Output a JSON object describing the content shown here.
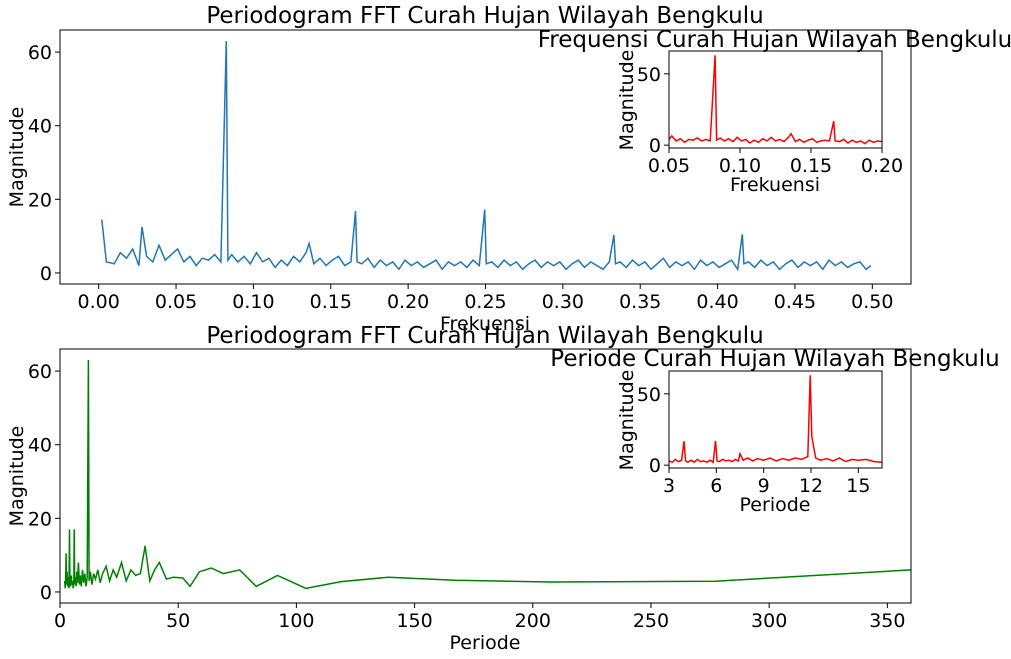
{
  "chart_data": [
    {
      "id": "top-main",
      "type": "line",
      "title": "Periodogram FFT Curah Hujan Wilayah Bengkulu",
      "xlabel": "Frekuensi",
      "ylabel": "Magnitude",
      "color": "#1f77b4",
      "xlim": [
        -0.025,
        0.525
      ],
      "ylim": [
        -3,
        66
      ],
      "xticks": [
        0.0,
        0.05,
        0.1,
        0.15,
        0.2,
        0.25,
        0.3,
        0.35,
        0.4,
        0.45,
        0.5
      ],
      "xtick_labels": [
        "0.00",
        "0.05",
        "0.10",
        "0.15",
        "0.20",
        "0.25",
        "0.30",
        "0.35",
        "0.40",
        "0.45",
        "0.50"
      ],
      "yticks": [
        0,
        20,
        40,
        60
      ],
      "ytick_labels": [
        "0",
        "20",
        "40",
        "60"
      ],
      "grid": false,
      "x": [
        0.002,
        0.005,
        0.01,
        0.014,
        0.018,
        0.022,
        0.026,
        0.028,
        0.031,
        0.035,
        0.039,
        0.043,
        0.047,
        0.051,
        0.055,
        0.059,
        0.063,
        0.067,
        0.071,
        0.075,
        0.079,
        0.0825,
        0.0835,
        0.086,
        0.09,
        0.094,
        0.098,
        0.102,
        0.106,
        0.11,
        0.114,
        0.118,
        0.122,
        0.126,
        0.13,
        0.134,
        0.136,
        0.139,
        0.143,
        0.147,
        0.151,
        0.155,
        0.159,
        0.163,
        0.166,
        0.167,
        0.17,
        0.174,
        0.178,
        0.182,
        0.186,
        0.19,
        0.194,
        0.198,
        0.202,
        0.206,
        0.21,
        0.214,
        0.218,
        0.222,
        0.226,
        0.23,
        0.234,
        0.238,
        0.242,
        0.246,
        0.2495,
        0.2505,
        0.254,
        0.258,
        0.262,
        0.266,
        0.27,
        0.274,
        0.278,
        0.282,
        0.286,
        0.29,
        0.294,
        0.298,
        0.302,
        0.306,
        0.31,
        0.314,
        0.318,
        0.322,
        0.326,
        0.33,
        0.333,
        0.334,
        0.337,
        0.341,
        0.345,
        0.349,
        0.353,
        0.357,
        0.361,
        0.365,
        0.369,
        0.373,
        0.377,
        0.381,
        0.385,
        0.389,
        0.393,
        0.397,
        0.401,
        0.405,
        0.409,
        0.413,
        0.416,
        0.417,
        0.42,
        0.424,
        0.428,
        0.432,
        0.436,
        0.44,
        0.444,
        0.448,
        0.452,
        0.456,
        0.46,
        0.464,
        0.468,
        0.472,
        0.476,
        0.48,
        0.484,
        0.488,
        0.492,
        0.496,
        0.499
      ],
      "y": [
        14.5,
        3.0,
        2.5,
        5.5,
        4.0,
        6.5,
        2.0,
        12.5,
        4.5,
        3.0,
        7.5,
        3.5,
        5.0,
        6.5,
        3.0,
        4.5,
        2.0,
        4.0,
        3.5,
        5.0,
        3.0,
        63.0,
        3.5,
        5.0,
        3.0,
        4.5,
        2.5,
        5.5,
        3.0,
        4.0,
        1.5,
        3.5,
        2.0,
        4.5,
        3.0,
        5.5,
        8.0,
        2.5,
        4.0,
        2.0,
        3.5,
        4.5,
        2.0,
        3.0,
        16.8,
        3.0,
        2.5,
        4.0,
        1.5,
        3.5,
        2.0,
        3.0,
        1.0,
        3.5,
        2.0,
        3.0,
        1.5,
        2.5,
        3.5,
        1.0,
        3.0,
        2.0,
        3.0,
        1.5,
        3.5,
        2.0,
        17.2,
        2.5,
        3.0,
        1.5,
        3.5,
        2.0,
        3.0,
        1.0,
        2.5,
        3.5,
        1.5,
        3.0,
        2.0,
        3.0,
        1.0,
        2.5,
        3.5,
        1.5,
        3.0,
        2.0,
        1.0,
        3.0,
        10.3,
        2.5,
        3.0,
        1.5,
        3.5,
        2.0,
        3.0,
        1.0,
        2.5,
        4.0,
        1.5,
        3.0,
        2.0,
        3.0,
        1.0,
        3.5,
        2.0,
        3.0,
        1.5,
        2.5,
        3.5,
        1.0,
        10.5,
        2.5,
        3.0,
        1.5,
        3.5,
        2.0,
        3.0,
        1.0,
        2.5,
        3.5,
        1.5,
        3.0,
        2.0,
        3.0,
        1.0,
        3.5,
        2.0,
        3.0,
        1.5,
        2.5,
        3.0,
        1.0,
        2.0
      ]
    },
    {
      "id": "top-inset",
      "type": "line",
      "title": "Frequensi Curah Hujan Wilayah Bengkulu",
      "xlabel": "Frekuensi",
      "ylabel": "Magnitude",
      "color": "#ff0000",
      "xlim": [
        0.05,
        0.2
      ],
      "ylim": [
        -2,
        66
      ],
      "xticks": [
        0.05,
        0.1,
        0.15,
        0.2
      ],
      "xtick_labels": [
        "0.05",
        "0.10",
        "0.15",
        "0.20"
      ],
      "yticks": [
        0,
        50
      ],
      "ytick_labels": [
        "0",
        "50"
      ],
      "x": [
        0.05,
        0.052,
        0.055,
        0.058,
        0.061,
        0.064,
        0.067,
        0.07,
        0.073,
        0.076,
        0.079,
        0.0825,
        0.0835,
        0.086,
        0.089,
        0.092,
        0.095,
        0.098,
        0.101,
        0.104,
        0.107,
        0.11,
        0.113,
        0.116,
        0.119,
        0.122,
        0.125,
        0.128,
        0.131,
        0.134,
        0.136,
        0.139,
        0.142,
        0.145,
        0.148,
        0.151,
        0.154,
        0.157,
        0.16,
        0.163,
        0.166,
        0.167,
        0.17,
        0.173,
        0.176,
        0.179,
        0.182,
        0.185,
        0.188,
        0.191,
        0.194,
        0.197,
        0.2
      ],
      "y": [
        4.0,
        6.5,
        3.0,
        4.5,
        2.0,
        4.0,
        3.5,
        5.0,
        3.0,
        4.0,
        3.0,
        63.0,
        3.5,
        5.0,
        3.0,
        4.5,
        2.5,
        5.5,
        3.0,
        4.0,
        1.5,
        3.5,
        2.0,
        4.5,
        3.0,
        5.5,
        3.0,
        4.0,
        2.5,
        5.5,
        8.0,
        2.5,
        4.0,
        2.0,
        3.5,
        4.5,
        2.0,
        3.0,
        3.5,
        3.0,
        16.8,
        3.0,
        2.5,
        4.0,
        1.5,
        3.5,
        2.0,
        3.0,
        1.0,
        3.5,
        2.0,
        3.0,
        2.5
      ]
    },
    {
      "id": "bottom-main",
      "type": "line",
      "title": "Periodogram FFT Curah Hujan Wilayah Bengkulu",
      "xlabel": "Periode",
      "ylabel": "Magnitude",
      "color": "#008000",
      "xlim": [
        0,
        360
      ],
      "ylim": [
        -3,
        66
      ],
      "xticks": [
        0,
        50,
        100,
        150,
        200,
        250,
        300,
        350
      ],
      "xtick_labels": [
        "0",
        "50",
        "100",
        "150",
        "200",
        "250",
        "300",
        "350"
      ],
      "yticks": [
        0,
        20,
        40,
        60
      ],
      "ytick_labels": [
        "0",
        "20",
        "40",
        "60"
      ],
      "grid": false,
      "x": [
        2.0,
        2.2,
        2.4,
        2.6,
        2.8,
        3.0,
        3.2,
        3.4,
        3.6,
        3.8,
        4.0,
        4.2,
        4.5,
        4.8,
        5.0,
        5.3,
        5.6,
        5.9,
        6.0,
        6.2,
        6.5,
        6.8,
        7.1,
        7.4,
        7.8,
        8.2,
        8.6,
        9.0,
        9.5,
        10.0,
        10.5,
        11.0,
        11.5,
        12.0,
        12.3,
        12.8,
        13.5,
        14.2,
        15.0,
        16.0,
        17.0,
        18.0,
        19.5,
        21.0,
        22.5,
        24.0,
        26.0,
        28.0,
        30.0,
        32.0,
        34.0,
        36.0,
        38.0,
        40.0,
        42.0,
        45.0,
        48.0,
        52.0,
        55.0,
        59.0,
        64.0,
        69.0,
        76.0,
        83.0,
        92.0,
        104.0,
        119.0,
        139.0,
        167.0,
        208.0,
        277.0,
        360.0
      ],
      "y": [
        3.0,
        1.0,
        4.0,
        10.5,
        2.0,
        5.5,
        1.5,
        4.0,
        2.0,
        1.0,
        17.0,
        3.0,
        1.5,
        4.5,
        2.0,
        3.0,
        1.0,
        3.5,
        17.0,
        2.0,
        4.0,
        1.5,
        5.5,
        2.5,
        8.0,
        2.0,
        4.5,
        1.5,
        6.0,
        2.5,
        5.0,
        1.5,
        4.0,
        63.0,
        3.0,
        5.5,
        2.0,
        5.0,
        3.5,
        6.0,
        2.5,
        5.0,
        7.0,
        3.0,
        6.0,
        4.0,
        8.0,
        3.0,
        6.0,
        4.5,
        5.0,
        12.5,
        3.0,
        6.0,
        8.0,
        3.5,
        4.0,
        3.8,
        1.5,
        5.5,
        6.5,
        5.0,
        6.0,
        1.5,
        4.5,
        1.0,
        2.8,
        4.0,
        3.2,
        2.7,
        2.9,
        6.0
      ]
    },
    {
      "id": "bottom-inset",
      "type": "line",
      "title": "Periode Curah Hujan Wilayah Bengkulu",
      "xlabel": "Periode",
      "ylabel": "Magnitude",
      "color": "#ff0000",
      "xlim": [
        3,
        16.5
      ],
      "ylim": [
        -2,
        66
      ],
      "xticks": [
        3,
        6,
        9,
        12,
        15
      ],
      "xtick_labels": [
        "3",
        "6",
        "9",
        "12",
        "15"
      ],
      "yticks": [
        0,
        50
      ],
      "ytick_labels": [
        "0",
        "50"
      ],
      "x": [
        3.0,
        3.2,
        3.4,
        3.6,
        3.8,
        3.95,
        4.05,
        4.2,
        4.4,
        4.6,
        4.8,
        5.0,
        5.2,
        5.4,
        5.6,
        5.8,
        5.95,
        6.05,
        6.2,
        6.4,
        6.6,
        6.8,
        7.0,
        7.2,
        7.4,
        7.5,
        7.7,
        8.0,
        8.3,
        8.6,
        9.0,
        9.4,
        9.8,
        10.2,
        10.6,
        11.0,
        11.4,
        11.8,
        11.95,
        12.05,
        12.3,
        12.6,
        13.0,
        13.4,
        13.8,
        14.2,
        14.6,
        15.0,
        15.5,
        16.0,
        16.5
      ],
      "y": [
        3.0,
        2.0,
        4.0,
        2.5,
        3.5,
        16.8,
        3.0,
        2.0,
        3.5,
        2.0,
        4.0,
        2.5,
        3.0,
        2.0,
        3.5,
        2.0,
        17.0,
        3.0,
        2.5,
        4.0,
        3.0,
        3.5,
        2.5,
        4.0,
        3.0,
        8.0,
        3.5,
        5.0,
        3.0,
        4.5,
        3.5,
        5.0,
        3.0,
        4.5,
        3.5,
        5.0,
        4.0,
        6.0,
        63.0,
        20.0,
        5.0,
        3.5,
        4.5,
        3.0,
        5.0,
        2.5,
        4.0,
        3.5,
        4.0,
        2.5,
        2.0
      ]
    }
  ]
}
